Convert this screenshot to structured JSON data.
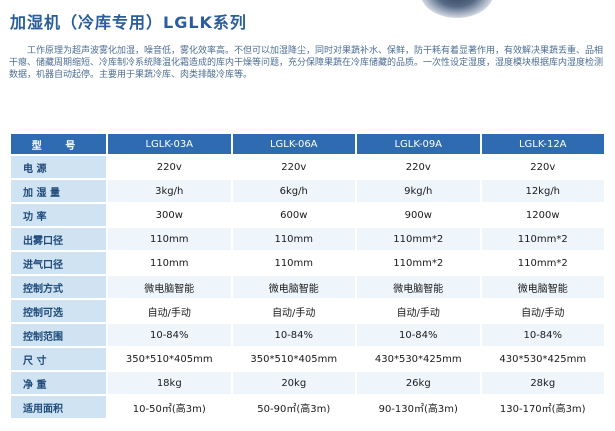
{
  "title": "加湿机（冷库专用）LGLK系列",
  "intro": "工作原理为超声波雾化加湿，噪音低，雾化效率高。不但可以加湿降尘，同时对果蔬补水、保鲜，防干耗有着显著作用，有效解决果蔬丢重、品相干瘪、储藏周期缩短、冷库制冷系统降温化霜造成的库内干燥等问题，充分保障果蔬在冷库储藏的品质。一次性设定湿度，湿度模块根据库内湿度检测数据，机器自动起停。主要用于果蔬冷库、肉类排酸冷库等。",
  "table": {
    "header_label": "型 号",
    "models": [
      "LGLK-03A",
      "LGLK-06A",
      "LGLK-09A",
      "LGLK-12A"
    ],
    "rows": [
      {
        "label": "电  源",
        "values": [
          "220v",
          "220v",
          "220v",
          "220v"
        ]
      },
      {
        "label": "加 湿 量",
        "values": [
          "3kg/h",
          "6kg/h",
          "9kg/h",
          "12kg/h"
        ]
      },
      {
        "label": "功  率",
        "values": [
          "300w",
          "600w",
          "900w",
          "1200w"
        ]
      },
      {
        "label": "出雾口径",
        "values": [
          "110mm",
          "110mm",
          "110mm*2",
          "110mm*2"
        ]
      },
      {
        "label": "进气口径",
        "values": [
          "110mm",
          "110mm",
          "110mm*2",
          "110mm*2"
        ]
      },
      {
        "label": "控制方式",
        "values": [
          "微电脑智能",
          "微电脑智能",
          "微电脑智能",
          "微电脑智能"
        ]
      },
      {
        "label": "控制可选",
        "values": [
          "自动/手动",
          "自动/手动",
          "自动/手动",
          "自动/手动"
        ]
      },
      {
        "label": "控制范围",
        "values": [
          "10-84%",
          "10-84%",
          "10-84%",
          "10-84%"
        ]
      },
      {
        "label": "尺  寸",
        "values": [
          "350*510*405mm",
          "350*510*405mm",
          "430*530*425mm",
          "430*530*425mm"
        ]
      },
      {
        "label": "净  重",
        "values": [
          "18kg",
          "20kg",
          "26kg",
          "28kg"
        ]
      },
      {
        "label": "适用面积",
        "values": [
          "10-50㎡(高3m)",
          "50-90㎡(高3m)",
          "90-130㎡(高3m)",
          "130-170㎡(高3m)"
        ]
      }
    ]
  }
}
